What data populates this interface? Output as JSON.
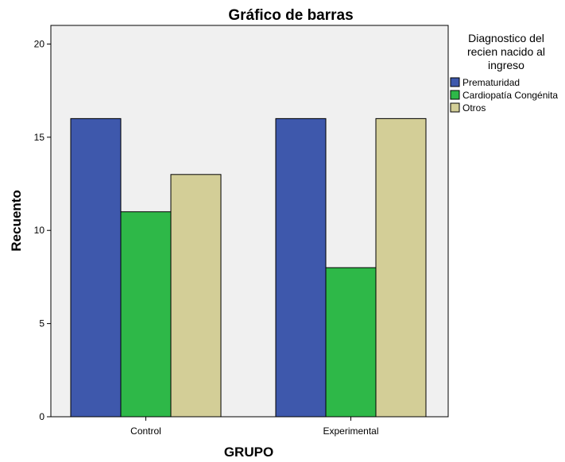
{
  "chart_data": {
    "type": "bar",
    "title": "Gráfico de barras",
    "xlabel": "GRUPO",
    "ylabel": "Recuento",
    "ylim": [
      0,
      21
    ],
    "yticks": [
      0,
      5,
      10,
      15,
      20
    ],
    "categories": [
      "Control",
      "Experimental"
    ],
    "legend": {
      "title_lines": [
        "Diagnostico del",
        "recien nacido al",
        "ingreso"
      ],
      "position": "right"
    },
    "grid": false,
    "plot_background": "#f0f0f0",
    "series": [
      {
        "name": "Prematuridad",
        "values": [
          16,
          16
        ],
        "color": "#3e58ac"
      },
      {
        "name": "Cardiopatía Congénita",
        "values": [
          11,
          8
        ],
        "color": "#2eb848"
      },
      {
        "name": "Otros",
        "values": [
          13,
          16
        ],
        "color": "#d3ce97"
      }
    ]
  }
}
